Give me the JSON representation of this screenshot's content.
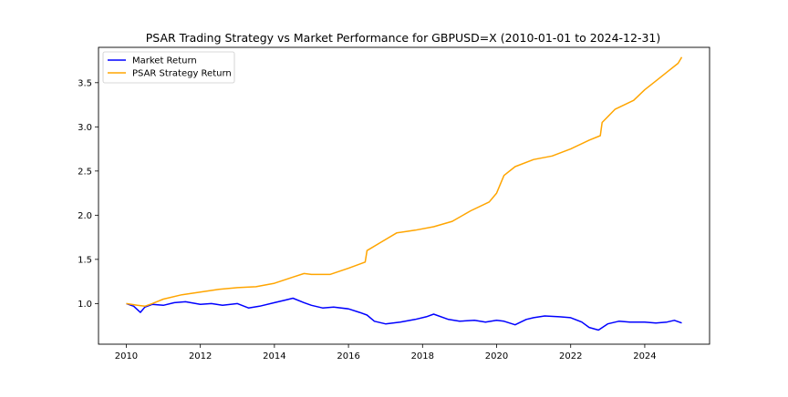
{
  "chart_data": {
    "type": "line",
    "title": "PSAR Trading Strategy vs Market Performance for GBPUSD=X (2010-01-01 to 2024-12-31)",
    "xlabel": "",
    "ylabel": "",
    "xlim": [
      2009.25,
      2025.75
    ],
    "ylim": [
      0.54,
      3.9
    ],
    "x_ticks": [
      "2010",
      "2012",
      "2014",
      "2016",
      "2018",
      "2020",
      "2022",
      "2024"
    ],
    "y_ticks": [
      "1.0",
      "1.5",
      "2.0",
      "2.5",
      "3.0",
      "3.5"
    ],
    "grid": false,
    "legend_position": "upper-left",
    "series": [
      {
        "name": "Market Return",
        "color": "#0000ff",
        "x": [
          2010.0,
          2010.2,
          2010.38,
          2010.5,
          2010.7,
          2011.0,
          2011.3,
          2011.6,
          2012.0,
          2012.3,
          2012.6,
          2013.0,
          2013.3,
          2013.6,
          2014.0,
          2014.3,
          2014.5,
          2014.8,
          2015.0,
          2015.3,
          2015.6,
          2016.0,
          2016.3,
          2016.5,
          2016.7,
          2017.0,
          2017.4,
          2017.8,
          2018.1,
          2018.3,
          2018.7,
          2019.0,
          2019.4,
          2019.7,
          2020.0,
          2020.2,
          2020.5,
          2020.8,
          2021.0,
          2021.3,
          2021.7,
          2022.0,
          2022.3,
          2022.5,
          2022.75,
          2023.0,
          2023.3,
          2023.6,
          2024.0,
          2024.3,
          2024.6,
          2024.8,
          2025.0
        ],
        "values": [
          1.0,
          0.97,
          0.9,
          0.96,
          0.99,
          0.98,
          1.01,
          1.02,
          0.99,
          1.0,
          0.98,
          1.0,
          0.95,
          0.97,
          1.01,
          1.04,
          1.06,
          1.01,
          0.98,
          0.95,
          0.96,
          0.94,
          0.9,
          0.87,
          0.8,
          0.77,
          0.79,
          0.82,
          0.85,
          0.88,
          0.82,
          0.8,
          0.81,
          0.79,
          0.81,
          0.8,
          0.76,
          0.82,
          0.84,
          0.86,
          0.85,
          0.84,
          0.79,
          0.73,
          0.7,
          0.77,
          0.8,
          0.79,
          0.79,
          0.78,
          0.79,
          0.81,
          0.78
        ]
      },
      {
        "name": "PSAR Strategy Return",
        "color": "#ffa500",
        "x": [
          2010.0,
          2010.3,
          2010.5,
          2010.7,
          2011.0,
          2011.5,
          2012.0,
          2012.5,
          2013.0,
          2013.5,
          2014.0,
          2014.5,
          2014.8,
          2015.0,
          2015.5,
          2016.0,
          2016.45,
          2016.5,
          2016.9,
          2017.3,
          2017.8,
          2018.3,
          2018.8,
          2019.3,
          2019.8,
          2020.0,
          2020.2,
          2020.5,
          2021.0,
          2021.5,
          2022.0,
          2022.5,
          2022.8,
          2022.85,
          2023.2,
          2023.7,
          2024.0,
          2024.3,
          2024.6,
          2024.9,
          2025.0
        ],
        "values": [
          1.0,
          0.98,
          0.97,
          1.0,
          1.05,
          1.1,
          1.13,
          1.16,
          1.18,
          1.19,
          1.23,
          1.3,
          1.34,
          1.33,
          1.33,
          1.4,
          1.47,
          1.6,
          1.7,
          1.8,
          1.83,
          1.87,
          1.93,
          2.05,
          2.15,
          2.25,
          2.45,
          2.55,
          2.63,
          2.67,
          2.75,
          2.85,
          2.9,
          3.05,
          3.2,
          3.3,
          3.42,
          3.52,
          3.62,
          3.72,
          3.79
        ]
      }
    ]
  }
}
